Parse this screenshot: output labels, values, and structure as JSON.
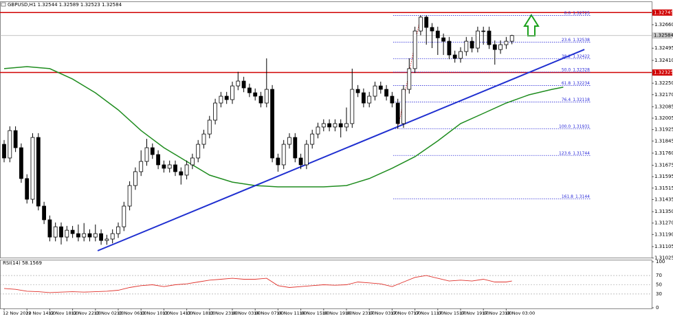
{
  "chart_data": {
    "type": "candlestick",
    "title": "GBPUSD,H1 1.32544 1.32589 1.32523 1.32584",
    "open": [
      1.31822,
      1.31726,
      1.31918,
      1.31798,
      1.31582,
      1.31437,
      1.3187,
      1.31389,
      1.31293,
      1.31172,
      1.31244,
      1.31172,
      1.3122,
      1.31196,
      1.31172,
      1.31196,
      1.31172,
      1.31196,
      1.31148,
      1.31158,
      1.31196,
      1.31244,
      1.31389,
      1.31533,
      1.3163,
      1.31702,
      1.31798,
      1.3175,
      1.31678,
      1.31654,
      1.31678,
      1.3163,
      1.31606,
      1.31678,
      1.31726,
      1.31822,
      1.31894,
      1.31991,
      1.32111,
      1.32159,
      1.32135,
      1.32231,
      1.32265,
      1.32217,
      1.32183,
      1.32159,
      1.32111,
      1.32207,
      1.31726,
      1.31678,
      1.31822,
      1.3187,
      1.31726,
      1.31678,
      1.31822,
      1.31894,
      1.31943,
      1.31967,
      1.31943,
      1.31967,
      1.31943,
      1.31967,
      1.32207,
      1.32183,
      1.32111,
      1.32159,
      1.32231,
      1.32207,
      1.32159,
      1.32111,
      1.31967,
      1.32207,
      1.32352,
      1.32616,
      1.32713,
      1.32641,
      1.32616,
      1.32568,
      1.32544,
      1.32448,
      1.32424,
      1.32472,
      1.32544,
      1.32496,
      1.32616,
      1.32616,
      1.3252,
      1.32486,
      1.3252,
      1.32544
    ],
    "high": [
      1.31852,
      1.31948,
      1.31948,
      1.31828,
      1.31612,
      1.319,
      1.319,
      1.31419,
      1.31323,
      1.31274,
      1.31274,
      1.3125,
      1.3125,
      1.3126,
      1.3127,
      1.31226,
      1.3126,
      1.31226,
      1.31188,
      1.31226,
      1.31274,
      1.31419,
      1.31563,
      1.3166,
      1.3178,
      1.3186,
      1.31828,
      1.3178,
      1.31708,
      1.31708,
      1.31708,
      1.3166,
      1.31708,
      1.31756,
      1.31852,
      1.31924,
      1.32021,
      1.32141,
      1.32189,
      1.32189,
      1.32261,
      1.3233,
      1.32295,
      1.32247,
      1.32213,
      1.32189,
      1.32424,
      1.32237,
      1.31756,
      1.31852,
      1.319,
      1.319,
      1.31756,
      1.31852,
      1.31924,
      1.31973,
      1.31997,
      1.31997,
      1.31997,
      1.31997,
      1.3208,
      1.32352,
      1.32237,
      1.32213,
      1.32189,
      1.32261,
      1.32261,
      1.32237,
      1.32189,
      1.32141,
      1.32237,
      1.32424,
      1.32646,
      1.32725,
      1.32725,
      1.32671,
      1.32646,
      1.32598,
      1.32574,
      1.32478,
      1.32502,
      1.32574,
      1.32574,
      1.32646,
      1.32646,
      1.32646,
      1.3255,
      1.3255,
      1.32574,
      1.32589
    ],
    "low": [
      1.31696,
      1.31696,
      1.31768,
      1.31552,
      1.31407,
      1.31407,
      1.31359,
      1.31263,
      1.31142,
      1.31142,
      1.3112,
      1.31142,
      1.31166,
      1.31142,
      1.31142,
      1.31142,
      1.31142,
      1.31118,
      1.31118,
      1.31128,
      1.31166,
      1.31214,
      1.31359,
      1.31503,
      1.316,
      1.31672,
      1.3172,
      1.31648,
      1.31624,
      1.31624,
      1.316,
      1.3154,
      1.31576,
      1.31648,
      1.31696,
      1.31792,
      1.31864,
      1.31961,
      1.32081,
      1.32105,
      1.32105,
      1.32201,
      1.32187,
      1.32153,
      1.32129,
      1.32081,
      1.32081,
      1.31696,
      1.3163,
      1.31648,
      1.31792,
      1.31696,
      1.31648,
      1.31648,
      1.31792,
      1.31864,
      1.31913,
      1.31913,
      1.31913,
      1.3187,
      1.31913,
      1.31937,
      1.32153,
      1.32081,
      1.32081,
      1.32129,
      1.32177,
      1.32129,
      1.32081,
      1.31931,
      1.31937,
      1.32177,
      1.32322,
      1.32586,
      1.3252,
      1.32496,
      1.32448,
      1.32448,
      1.32418,
      1.32394,
      1.32394,
      1.32442,
      1.32466,
      1.32466,
      1.3252,
      1.3249,
      1.3238,
      1.32456,
      1.3249,
      1.32523
    ],
    "close": [
      1.31726,
      1.31918,
      1.31798,
      1.31582,
      1.31437,
      1.3187,
      1.31389,
      1.31293,
      1.31172,
      1.31244,
      1.31172,
      1.3122,
      1.31196,
      1.31172,
      1.31196,
      1.31172,
      1.31196,
      1.31148,
      1.31158,
      1.31196,
      1.31244,
      1.31389,
      1.31533,
      1.3163,
      1.31702,
      1.31798,
      1.3175,
      1.31678,
      1.31654,
      1.31678,
      1.3163,
      1.31606,
      1.31678,
      1.31726,
      1.31822,
      1.31894,
      1.31991,
      1.32111,
      1.32159,
      1.32135,
      1.32231,
      1.32265,
      1.32217,
      1.32183,
      1.32159,
      1.32111,
      1.32207,
      1.31726,
      1.31678,
      1.31822,
      1.3187,
      1.31726,
      1.31678,
      1.31822,
      1.31894,
      1.31943,
      1.31967,
      1.31943,
      1.31967,
      1.31943,
      1.31967,
      1.32207,
      1.32183,
      1.32111,
      1.32159,
      1.32231,
      1.32207,
      1.32159,
      1.32111,
      1.31967,
      1.32207,
      1.32352,
      1.32616,
      1.32713,
      1.32641,
      1.32616,
      1.32568,
      1.32544,
      1.32448,
      1.32424,
      1.32472,
      1.32544,
      1.32496,
      1.32616,
      1.32616,
      1.3252,
      1.32486,
      1.3252,
      1.32544,
      1.32584
    ],
    "bull_color": "#ffffff",
    "bear_color": "#000000",
    "ylim": [
      1.31028,
      1.32809
    ],
    "yticks": [
      {
        "value": 1.3266,
        "label": "1.32660"
      },
      1.32495,
      {
        "value": 1.3241,
        "label": "1.32410"
      },
      {
        "value": 1.3225,
        "label": "1.32250"
      },
      {
        "value": 1.3217,
        "label": "1.32170"
      },
      1.32085,
      1.32005,
      1.31925,
      1.31845,
      {
        "value": 1.3176,
        "label": "1.31760"
      },
      1.31675,
      1.31595,
      1.31515,
      1.31435,
      {
        "value": 1.3135,
        "label": "1.31350"
      },
      {
        "value": 1.3127,
        "label": "1.31270"
      },
      {
        "value": 1.3119,
        "label": "1.31190"
      },
      1.31105,
      1.31025
    ],
    "levels": [
      1.32745,
      1.32325
    ],
    "level_color": "#d00000",
    "ma": {
      "color": "#1e8c1e",
      "x": [
        0,
        4,
        8,
        12,
        16,
        20,
        24,
        28,
        32,
        36,
        40,
        44,
        48,
        52,
        56,
        60,
        64,
        68,
        72,
        76,
        80,
        84,
        88,
        92,
        96,
        98
      ],
      "values": [
        1.32352,
        1.32366,
        1.32352,
        1.32279,
        1.32183,
        1.32063,
        1.31918,
        1.31798,
        1.31702,
        1.31606,
        1.31557,
        1.31533,
        1.31524,
        1.31524,
        1.31524,
        1.31533,
        1.31582,
        1.31654,
        1.31735,
        1.31846,
        1.31967,
        1.32039,
        1.32111,
        1.32169,
        1.32207,
        1.32222
      ]
    },
    "trendline": {
      "color": "#1f2fd0",
      "x": [
        16.4,
        101.7
      ],
      "values": [
        1.31076,
        1.32486
      ]
    },
    "fib": [
      {
        "label": "0.0",
        "value": 1.32725
      },
      {
        "label": "23.6",
        "value": 1.32538
      },
      {
        "label": "38.2",
        "value": 1.32422
      },
      {
        "label": "50.0",
        "value": 1.32328
      },
      {
        "label": "61.8",
        "value": 1.32234
      },
      {
        "label": "76.4",
        "value": 1.32118
      },
      {
        "label": "100.0",
        "value": 1.31931
      },
      {
        "label": "123.6",
        "value": 1.31744
      },
      {
        "label": "161.8",
        "value": 1.3144
      }
    ],
    "fib_color": "#2a2ad8",
    "time_labels": [
      "12 Nov 2020",
      "12 Nov 14:00",
      "12 Nov 18:00",
      "12 Nov 22:00",
      "13 Nov 02:00",
      "13 Nov 06:00",
      "13 Nov 10:00",
      "13 Nov 14:00",
      "13 Nov 18:00",
      "13 Nov 23:00",
      "16 Nov 03:00",
      "16 Nov 07:00",
      "16 Nov 11:00",
      "16 Nov 15:00",
      "16 Nov 19:00",
      "16 Nov 23:00",
      "17 Nov 03:00",
      "17 Nov 07:00",
      "17 Nov 11:00",
      "17 Nov 15:00",
      "17 Nov 19:00",
      "17 Nov 23:00",
      "18 Nov 03:00"
    ],
    "rsi": {
      "title": "RSI(14) 58.1569",
      "color": "#e0302a",
      "ylim": [
        0,
        100
      ],
      "yticks": [
        100,
        70,
        50,
        30,
        0
      ],
      "x": [
        0,
        2,
        4,
        6,
        8,
        10,
        12,
        14,
        16,
        18,
        20,
        22,
        24,
        26,
        28,
        30,
        32,
        34,
        36,
        38,
        40,
        42,
        44,
        46,
        48,
        50,
        52,
        54,
        56,
        58,
        60,
        62,
        64,
        66,
        68,
        70,
        72,
        74,
        76,
        78,
        80,
        82,
        84,
        86,
        88,
        89
      ],
      "values": [
        42,
        40,
        36,
        35,
        33,
        34,
        35,
        34,
        35,
        36,
        38,
        44,
        48,
        50,
        46,
        50,
        52,
        56,
        60,
        62,
        64,
        62,
        62,
        64,
        48,
        44,
        46,
        48,
        50,
        49,
        50,
        56,
        54,
        52,
        46,
        56,
        66,
        70,
        64,
        58,
        60,
        58,
        62,
        56,
        56,
        58
      ]
    }
  }
}
